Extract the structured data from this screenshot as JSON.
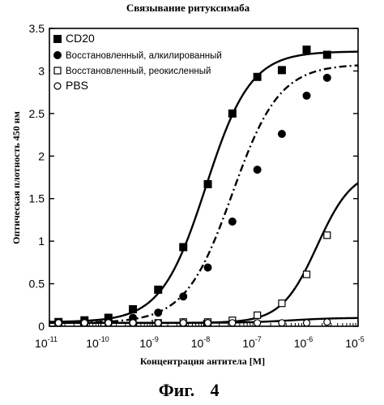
{
  "chart_data": {
    "type": "scatter",
    "title": "Связывание ритуксимаба",
    "xlabel": "Концентрация антитела [M]",
    "ylabel": "Оптическая плотность 450 нм",
    "x_scale": "log",
    "xlim": [
      1e-11,
      1e-05
    ],
    "ylim": [
      0,
      3.5
    ],
    "x_tick_base": "10",
    "x_ticks": [
      {
        "value": 1e-11,
        "exp": "-11"
      },
      {
        "value": 1e-10,
        "exp": "-10"
      },
      {
        "value": 1e-09,
        "exp": "-9"
      },
      {
        "value": 1e-08,
        "exp": "-8"
      },
      {
        "value": 1e-07,
        "exp": "-7"
      },
      {
        "value": 1e-06,
        "exp": "-6"
      },
      {
        "value": 1e-05,
        "exp": "-5"
      }
    ],
    "y_ticks": [
      "0",
      "0.5",
      "1",
      "1.5",
      "2",
      "2.5",
      "3",
      "3.5"
    ],
    "y_tick_values": [
      0,
      0.5,
      1,
      1.5,
      2,
      2.5,
      3,
      3.5
    ],
    "grid": false,
    "legend_placement": "top-left",
    "series": [
      {
        "name": "CD20",
        "marker": "filled-square",
        "line": "solid",
        "x": [
          1.5e-11,
          4.8e-11,
          1.4e-10,
          4.2e-10,
          1.3e-09,
          4e-09,
          1.2e-08,
          3.6e-08,
          1.1e-07,
          3.3e-07,
          1e-06,
          2.5e-06
        ],
        "y": [
          0.05,
          0.07,
          0.1,
          0.2,
          0.43,
          0.93,
          1.67,
          2.5,
          2.93,
          3.01,
          3.25,
          3.19
        ]
      },
      {
        "name": "Восстановленный, алкилированный",
        "marker": "filled-circle",
        "line": "dash-dot",
        "x": [
          1.5e-11,
          4.8e-11,
          1.4e-10,
          4.2e-10,
          1.3e-09,
          4e-09,
          1.2e-08,
          3.6e-08,
          1.1e-07,
          3.3e-07,
          1e-06,
          2.5e-06
        ],
        "y": [
          0.04,
          0.05,
          0.07,
          0.1,
          0.16,
          0.35,
          0.69,
          1.23,
          1.84,
          2.26,
          2.71,
          2.92
        ]
      },
      {
        "name": "Восстановленный, реокисленный",
        "marker": "open-square",
        "line": "solid",
        "x": [
          1.5e-11,
          4.8e-11,
          1.4e-10,
          4.2e-10,
          1.3e-09,
          4e-09,
          1.2e-08,
          3.6e-08,
          1.1e-07,
          3.3e-07,
          1e-06,
          2.5e-06
        ],
        "y": [
          0.04,
          0.04,
          0.04,
          0.04,
          0.04,
          0.05,
          0.05,
          0.07,
          0.13,
          0.27,
          0.61,
          1.07
        ]
      },
      {
        "name": "PBS",
        "marker": "open-circle",
        "line": "solid",
        "x": [
          1.5e-11,
          4.8e-11,
          1.4e-10,
          4.2e-10,
          1.3e-09,
          4e-09,
          1.2e-08,
          3.6e-08,
          1.1e-07,
          3.3e-07,
          1e-06,
          2.5e-06
        ],
        "y": [
          0.04,
          0.04,
          0.04,
          0.04,
          0.04,
          0.04,
          0.04,
          0.04,
          0.04,
          0.04,
          0.04,
          0.05
        ]
      }
    ],
    "fits": [
      {
        "series": "CD20",
        "bottom": 0.05,
        "top": 3.23,
        "ec50": 1.1e-08,
        "hill": 1.0,
        "xmin": 1e-11,
        "xmax": 1e-05,
        "style": "solid"
      },
      {
        "series": "Восстановленный, алкилированный",
        "bottom": 0.04,
        "top": 3.08,
        "ec50": 3.6e-08,
        "hill": 0.95,
        "xmin": 1e-11,
        "xmax": 1e-05,
        "style": "dash-dot"
      },
      {
        "series": "Восстановленный, реокисленный",
        "bottom": 0.04,
        "top": 1.85,
        "ec50": 1.6e-06,
        "hill": 1.25,
        "xmin": 1e-11,
        "xmax": 1e-05,
        "style": "solid"
      },
      {
        "series": "PBS",
        "bottom": 0.04,
        "top": 0.1,
        "ec50": 5e-07,
        "hill": 1.0,
        "xmin": 1e-11,
        "xmax": 1e-05,
        "style": "solid"
      }
    ],
    "figure_label": "Фиг.",
    "figure_number": "4"
  }
}
